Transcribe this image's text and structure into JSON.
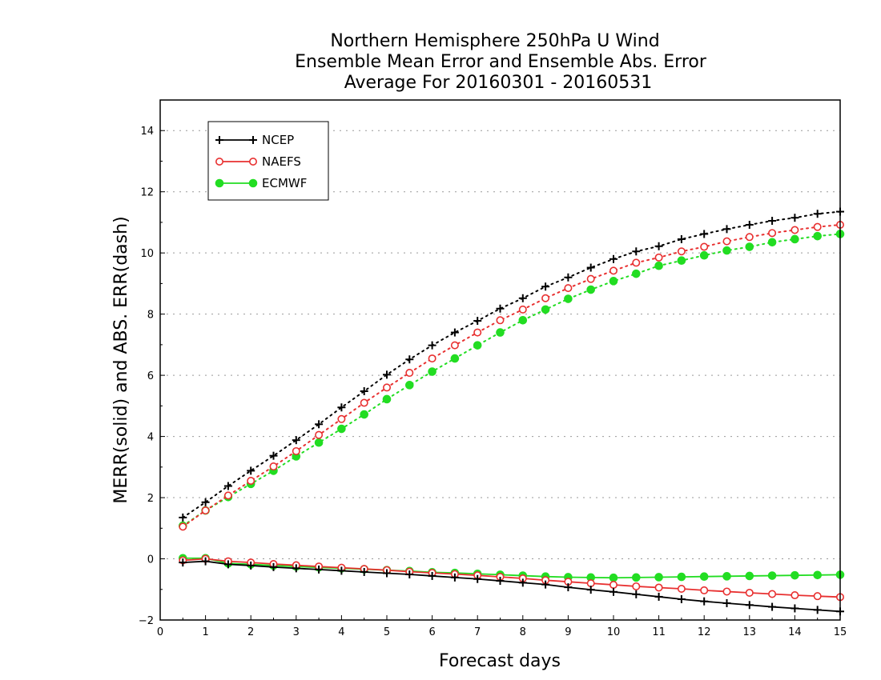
{
  "chart_data": {
    "type": "line",
    "title_lines": [
      "Northern Hemisphere 250hPa U Wind",
      "Ensemble Mean Error and Ensemble Abs. Error",
      "Average For 20160301 - 20160531"
    ],
    "xlabel": "Forecast days",
    "ylabel": "MERR(solid) and ABS. ERR(dash)",
    "xlim": [
      0,
      15
    ],
    "ylim": [
      -2,
      15
    ],
    "x_ticks": [
      "0",
      "1",
      "2",
      "3",
      "4",
      "5",
      "6",
      "7",
      "8",
      "9",
      "10",
      "11",
      "12",
      "13",
      "14",
      "15"
    ],
    "y_ticks": [
      "−2",
      "0",
      "2",
      "4",
      "6",
      "8",
      "10",
      "12",
      "14"
    ],
    "y_tick_values": [
      -2,
      0,
      2,
      4,
      6,
      8,
      10,
      12,
      14
    ],
    "grid": "horizontal dotted",
    "legend_position": "top-left",
    "x": [
      0.5,
      1,
      1.5,
      2,
      2.5,
      3,
      3.5,
      4,
      4.5,
      5,
      5.5,
      6,
      6.5,
      7,
      7.5,
      8,
      8.5,
      9,
      9.5,
      10,
      10.5,
      11,
      11.5,
      12,
      12.5,
      13,
      13.5,
      14,
      14.5,
      15
    ],
    "series": [
      {
        "name": "NCEP",
        "color": "#000000",
        "marker": "plus",
        "merr": [
          -0.12,
          -0.08,
          -0.18,
          -0.22,
          -0.27,
          -0.31,
          -0.35,
          -0.39,
          -0.43,
          -0.47,
          -0.51,
          -0.56,
          -0.61,
          -0.66,
          -0.72,
          -0.78,
          -0.84,
          -0.93,
          -1.01,
          -1.08,
          -1.16,
          -1.24,
          -1.32,
          -1.39,
          -1.45,
          -1.51,
          -1.57,
          -1.62,
          -1.67,
          -1.72
        ],
        "abs_err": [
          1.35,
          1.85,
          2.38,
          2.88,
          3.37,
          3.88,
          4.4,
          4.95,
          5.48,
          6.02,
          6.52,
          6.98,
          7.4,
          7.78,
          8.18,
          8.52,
          8.9,
          9.2,
          9.52,
          9.8,
          10.05,
          10.22,
          10.45,
          10.62,
          10.78,
          10.92,
          11.05,
          11.15,
          11.28,
          11.35
        ]
      },
      {
        "name": "NAEFS",
        "color": "#e83030",
        "marker": "open-circle",
        "merr": [
          -0.05,
          0.0,
          -0.08,
          -0.12,
          -0.17,
          -0.21,
          -0.25,
          -0.29,
          -0.33,
          -0.37,
          -0.42,
          -0.46,
          -0.5,
          -0.54,
          -0.59,
          -0.64,
          -0.7,
          -0.75,
          -0.8,
          -0.85,
          -0.9,
          -0.94,
          -0.98,
          -1.03,
          -1.07,
          -1.11,
          -1.15,
          -1.19,
          -1.22,
          -1.25
        ],
        "abs_err": [
          1.05,
          1.58,
          2.07,
          2.55,
          3.02,
          3.52,
          4.05,
          4.57,
          5.1,
          5.6,
          6.08,
          6.55,
          6.98,
          7.4,
          7.8,
          8.15,
          8.52,
          8.85,
          9.15,
          9.42,
          9.68,
          9.85,
          10.05,
          10.2,
          10.38,
          10.52,
          10.65,
          10.75,
          10.85,
          10.92
        ]
      },
      {
        "name": "ECMWF",
        "color": "#22dd22",
        "marker": "filled-circle",
        "merr": [
          0.02,
          0.02,
          -0.15,
          -0.18,
          -0.22,
          -0.25,
          -0.28,
          -0.31,
          -0.34,
          -0.37,
          -0.4,
          -0.44,
          -0.46,
          -0.49,
          -0.52,
          -0.55,
          -0.58,
          -0.6,
          -0.61,
          -0.62,
          -0.61,
          -0.6,
          -0.59,
          -0.58,
          -0.57,
          -0.56,
          -0.55,
          -0.54,
          -0.53,
          -0.52
        ],
        "abs_err": [
          1.08,
          1.58,
          2.02,
          2.45,
          2.88,
          3.35,
          3.8,
          4.25,
          4.72,
          5.22,
          5.68,
          6.12,
          6.55,
          6.98,
          7.4,
          7.8,
          8.15,
          8.5,
          8.8,
          9.08,
          9.32,
          9.58,
          9.75,
          9.92,
          10.08,
          10.2,
          10.35,
          10.45,
          10.55,
          10.62
        ]
      }
    ]
  }
}
